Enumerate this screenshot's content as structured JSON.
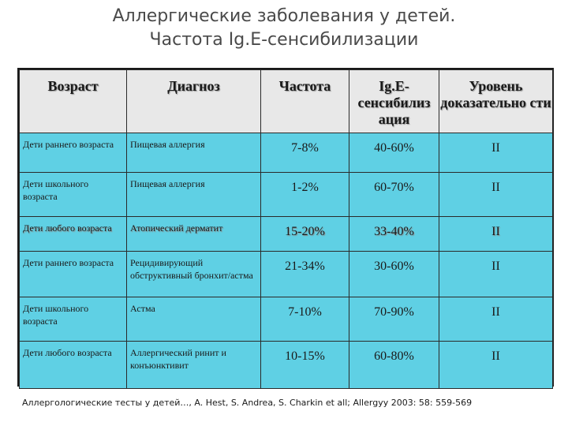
{
  "title": {
    "line1": "Аллергические заболевания у детей.",
    "line2": "Частота Ig.E-сенсибилизации"
  },
  "table": {
    "headers": [
      "Возраст",
      "Диагноз",
      "Частота",
      "Ig.E-сенсибилиз ация",
      "Уровень доказательно сти"
    ],
    "rows": [
      {
        "age": "Дети раннего возраста",
        "diagnosis": "Пищевая аллергия",
        "frequency": "7-8%",
        "ige": "40-60%",
        "level": "II"
      },
      {
        "age": "Дети школьного возраста",
        "diagnosis": "Пищевая аллергия",
        "frequency": "1-2%",
        "ige": "60-70%",
        "level": "II"
      },
      {
        "age": "Дети любого возраста",
        "diagnosis": "Атопический дерматит",
        "frequency": "15-20%",
        "ige": "33-40%",
        "level": "II"
      },
      {
        "age": "Дети раннего возраста",
        "diagnosis": "Рецидивирующий обструктивный бронхит/астма",
        "frequency": "21-34%",
        "ige": "30-60%",
        "level": "II"
      },
      {
        "age": "Дети школьного возраста",
        "diagnosis": "Астма",
        "frequency": "7-10%",
        "ige": "70-90%",
        "level": "II"
      },
      {
        "age": "Дети любого возраста",
        "diagnosis": "Аллергический ринит и конъюнктивит",
        "frequency": "10-15%",
        "ige": "60-80%",
        "level": "II"
      }
    ]
  },
  "footnote": "Аллергологические тесты у детей…, A. Hest, S. Andrea, S. Charkin et all; Allergyy 2003: 58: 559-569",
  "colors": {
    "row_background": "#5fd0e4",
    "header_background": "#e8e8e8"
  }
}
